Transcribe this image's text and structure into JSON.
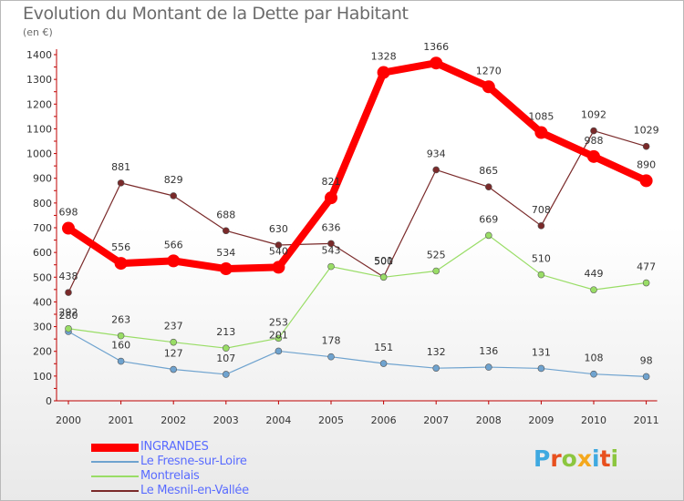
{
  "header": {
    "title": "Evolution du Montant de la Dette par Habitant",
    "subtitle": "(en €)"
  },
  "logo": {
    "text": "Proxiti",
    "letters": [
      {
        "ch": "P",
        "color": "#3fa9e0"
      },
      {
        "ch": "r",
        "color": "#e8501e"
      },
      {
        "ch": "o",
        "color": "#8cc63f"
      },
      {
        "ch": "x",
        "color": "#f4a81d"
      },
      {
        "ch": "i",
        "color": "#3fa9e0"
      },
      {
        "ch": "t",
        "color": "#e8501e"
      },
      {
        "ch": "i",
        "color": "#8cc63f"
      }
    ]
  },
  "chart_data": {
    "type": "line",
    "title": "Evolution du Montant de la Dette par Habitant",
    "subtitle": "(en €)",
    "xlabel": "",
    "ylabel": "",
    "ylim": [
      0,
      1400
    ],
    "yticks": [
      0,
      100,
      200,
      300,
      400,
      500,
      600,
      700,
      800,
      900,
      1000,
      1100,
      1200,
      1300,
      1400
    ],
    "grid": false,
    "legend_position": "bottom-left",
    "x": [
      "2000",
      "2001",
      "2002",
      "2003",
      "2004",
      "2005",
      "2006",
      "2007",
      "2008",
      "2009",
      "2010",
      "2011"
    ],
    "series": [
      {
        "name": "INGRANDES",
        "color": "#ff0000",
        "values": [
          698,
          556,
          566,
          534,
          540,
          821,
          1328,
          1366,
          1270,
          1085,
          988,
          890
        ],
        "labels": [
          "698",
          "556",
          "566",
          "534",
          "540",
          "821",
          "1328",
          "1366",
          "1270",
          "1085",
          "988",
          "890"
        ]
      },
      {
        "name": "Le Fresne-sur-Loire",
        "color": "#6fa3cf",
        "values": [
          280,
          160,
          127,
          107,
          201,
          178,
          151,
          132,
          136,
          131,
          108,
          98
        ],
        "labels": [
          "280",
          "160",
          "127",
          "107",
          "201",
          "178",
          "151",
          "132",
          "136",
          "131",
          "108",
          "98"
        ]
      },
      {
        "name": "Montrelais",
        "color": "#99dd66",
        "values": [
          292,
          263,
          237,
          213,
          253,
          543,
          500,
          525,
          669,
          510,
          449,
          477
        ],
        "labels": [
          "292",
          "263",
          "237",
          "213",
          "253",
          "543",
          "500",
          "525",
          "669",
          "510",
          "449",
          "477"
        ]
      },
      {
        "name": "Le Mesnil-en-Vallée",
        "color": "#7a2a2a",
        "values": [
          438,
          881,
          829,
          688,
          630,
          636,
          501,
          934,
          865,
          708,
          1092,
          1029
        ],
        "labels": [
          "438",
          "881",
          "829",
          "688",
          "630",
          "636",
          "501",
          "934",
          "865",
          "708",
          "1092",
          "1029"
        ]
      }
    ]
  }
}
